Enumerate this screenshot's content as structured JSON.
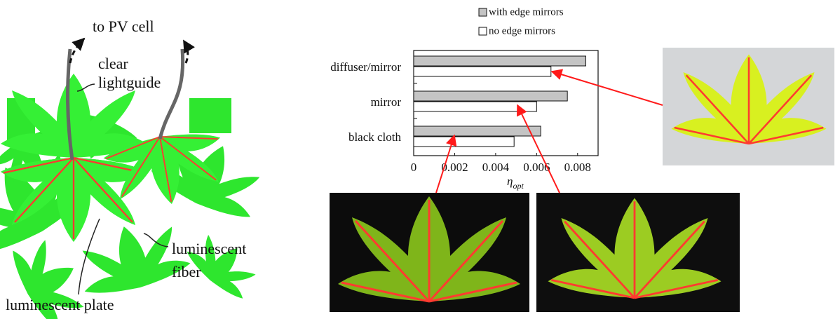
{
  "diagram": {
    "to_pv_cell": "to PV cell",
    "clear_lightguide": [
      "clear",
      "lightguide"
    ],
    "luminescent_fiber": [
      "luminescent",
      "fiber"
    ],
    "luminescent_plate": "luminescent plate"
  },
  "chart_data": {
    "type": "bar",
    "orientation": "horizontal",
    "categories": [
      "diffuser/mirror",
      "mirror",
      "black cloth"
    ],
    "series": [
      {
        "name": "with edge mirrors",
        "color": "#c4c4c4",
        "values": [
          0.0084,
          0.0075,
          0.0062
        ]
      },
      {
        "name": "no edge mirrors",
        "color": "#ffffff",
        "values": [
          0.0067,
          0.006,
          0.0049
        ]
      }
    ],
    "xlim": [
      0,
      0.009
    ],
    "xticks": [
      0,
      0.002,
      0.004,
      0.006,
      0.008
    ],
    "xlabel": "η",
    "xlabel_subscript": "opt"
  }
}
